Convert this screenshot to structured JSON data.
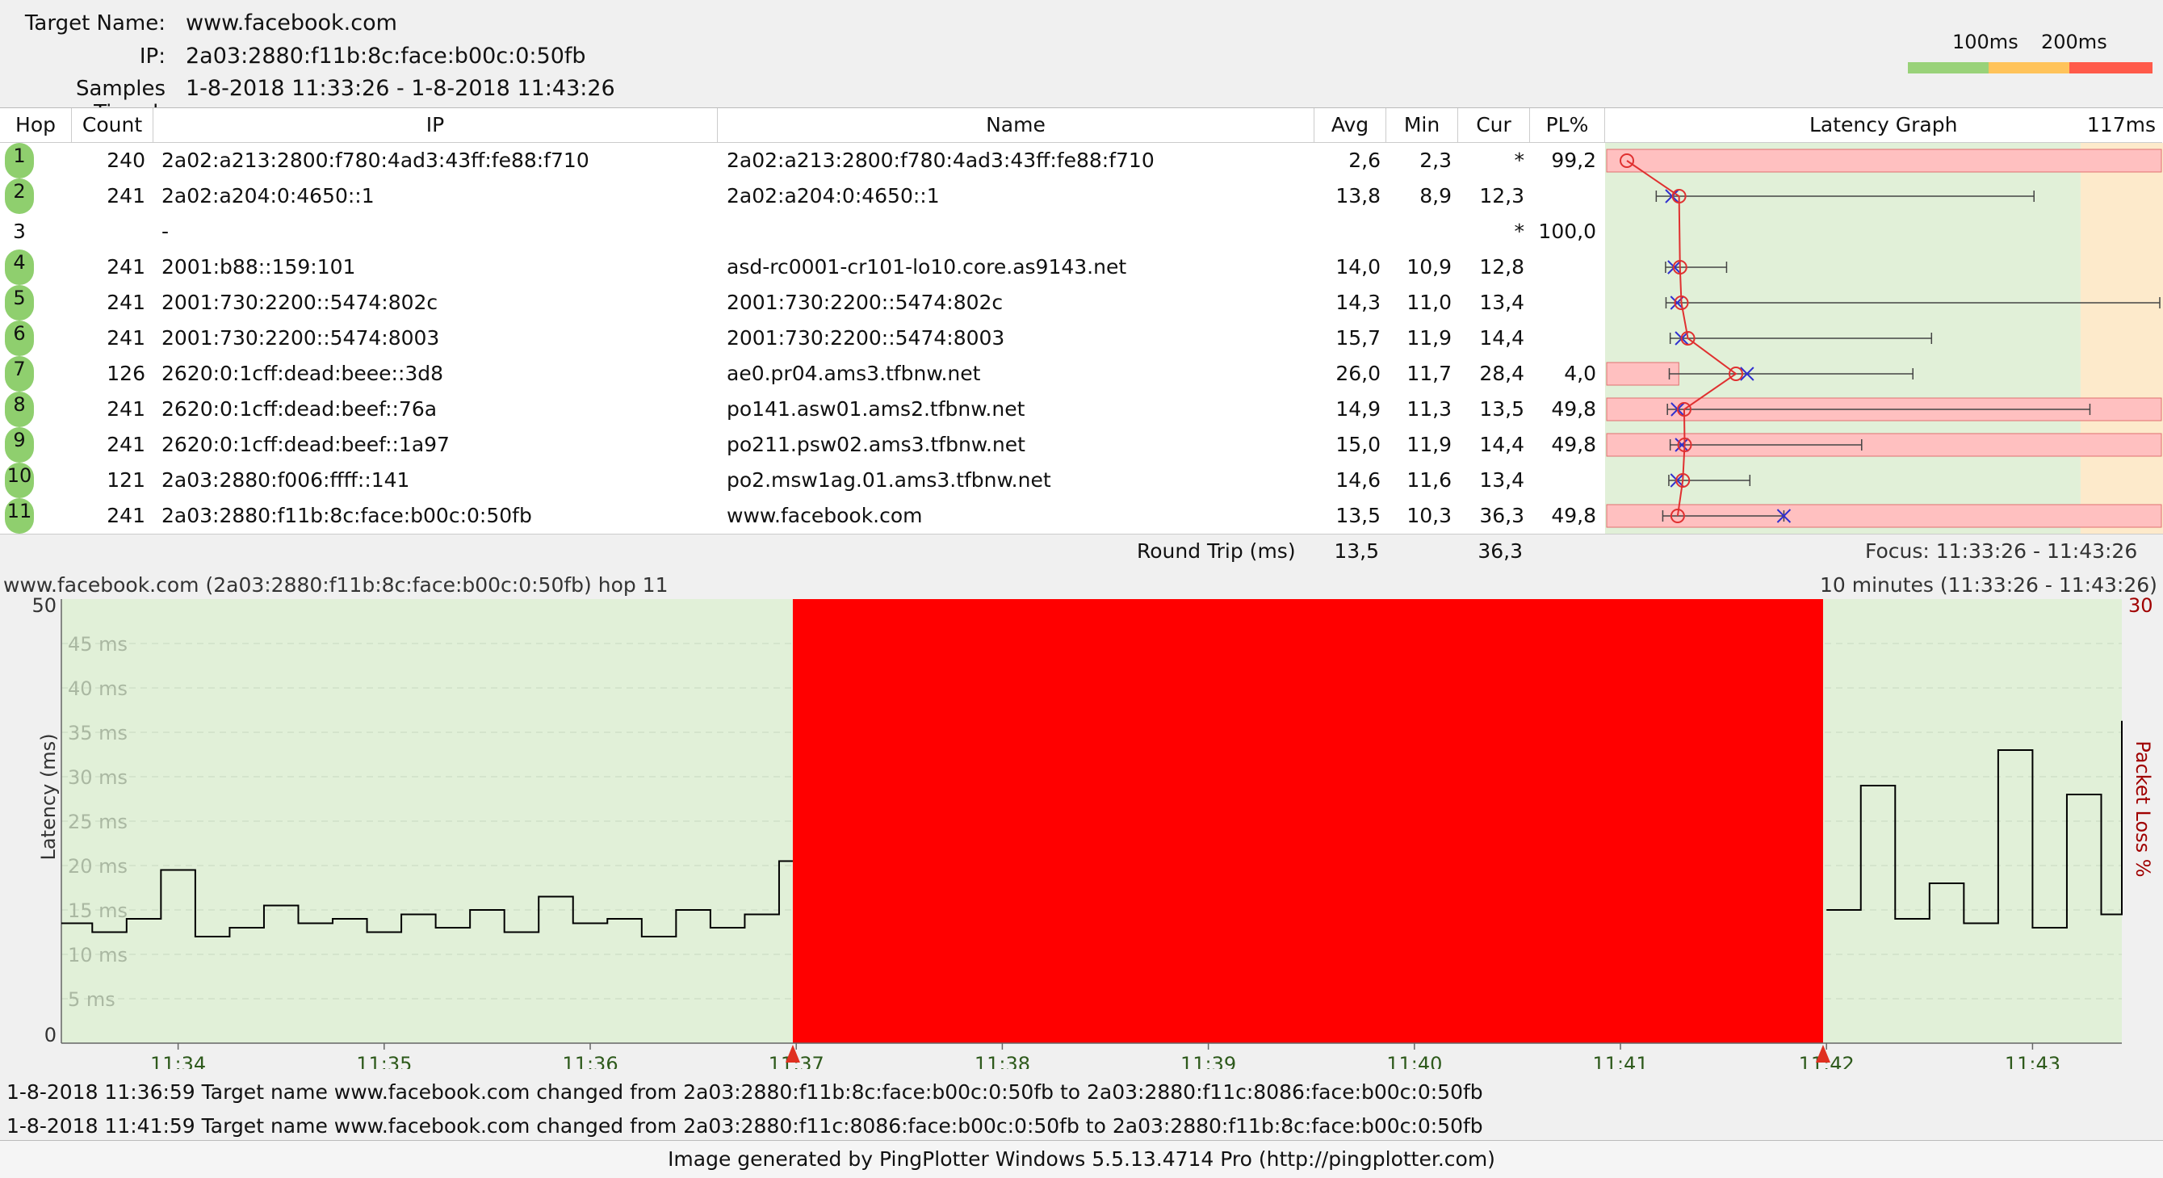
{
  "header": {
    "target_label": "Target Name:",
    "target_value": "www.facebook.com",
    "ip_label": "IP:",
    "ip_value": "2a03:2880:f11b:8c:face:b00c:0:50fb",
    "samples_label": "Samples Timed:",
    "samples_value": "1-8-2018 11:33:26 - 1-8-2018 11:43:26"
  },
  "legend": {
    "label_100": "100ms",
    "label_200": "200ms",
    "colors": {
      "good": "#99d279",
      "mid": "#ffc35a",
      "bad": "#ff5a4a"
    }
  },
  "table": {
    "columns": {
      "hop": "Hop",
      "count": "Count",
      "ip": "IP",
      "name": "Name",
      "avg": "Avg",
      "min": "Min",
      "cur": "Cur",
      "pl": "PL%",
      "graph": "Latency Graph",
      "graph_max": "117ms"
    },
    "rows": [
      {
        "hop": "1",
        "count": "240",
        "ip": "2a02:a213:2800:f780:4ad3:43ff:fe88:f710",
        "name": "2a02:a213:2800:f780:4ad3:43ff:fe88:f710",
        "avg": "2,6",
        "min": "2,3",
        "cur": "*",
        "pl": "99,2",
        "responding": true,
        "loss_fraction": 1.0,
        "max": 117,
        "cur_val": null
      },
      {
        "hop": "2",
        "count": "241",
        "ip": "2a02:a204:0:4650::1",
        "name": "2a02:a204:0:4650::1",
        "avg": "13,8",
        "min": "8,9",
        "cur": "12,3",
        "pl": "",
        "responding": true,
        "loss_fraction": 0,
        "max": 90,
        "cur_val": 12.3
      },
      {
        "hop": "3",
        "count": "",
        "ip": "-",
        "name": "",
        "avg": "",
        "min": "",
        "cur": "*",
        "pl": "100,0",
        "responding": false,
        "loss_fraction": 0,
        "max": null,
        "cur_val": null
      },
      {
        "hop": "4",
        "count": "241",
        "ip": "2001:b88::159:101",
        "name": "asd-rc0001-cr101-lo10.core.as9143.net",
        "avg": "14,0",
        "min": "10,9",
        "cur": "12,8",
        "pl": "",
        "responding": true,
        "loss_fraction": 0,
        "max": 24,
        "cur_val": 12.8
      },
      {
        "hop": "5",
        "count": "241",
        "ip": "2001:730:2200::5474:802c",
        "name": "2001:730:2200::5474:802c",
        "avg": "14,3",
        "min": "11,0",
        "cur": "13,4",
        "pl": "",
        "responding": true,
        "loss_fraction": 0,
        "max": 117,
        "cur_val": 13.4
      },
      {
        "hop": "6",
        "count": "241",
        "ip": "2001:730:2200::5474:8003",
        "name": "2001:730:2200::5474:8003",
        "avg": "15,7",
        "min": "11,9",
        "cur": "14,4",
        "pl": "",
        "responding": true,
        "loss_fraction": 0,
        "max": 68,
        "cur_val": 14.4
      },
      {
        "hop": "7",
        "count": "126",
        "ip": "2620:0:1cff:dead:beee::3d8",
        "name": "ae0.pr04.ams3.tfbnw.net",
        "avg": "26,0",
        "min": "11,7",
        "cur": "28,4",
        "pl": "4,0",
        "responding": true,
        "loss_fraction": 0.13,
        "max": 64,
        "cur_val": 28.4
      },
      {
        "hop": "8",
        "count": "241",
        "ip": "2620:0:1cff:dead:beef::76a",
        "name": "po141.asw01.ams2.tfbnw.net",
        "avg": "14,9",
        "min": "11,3",
        "cur": "13,5",
        "pl": "49,8",
        "responding": true,
        "loss_fraction": 1.0,
        "max": 102,
        "cur_val": 13.5
      },
      {
        "hop": "9",
        "count": "241",
        "ip": "2620:0:1cff:dead:beef::1a97",
        "name": "po211.psw02.ams3.tfbnw.net",
        "avg": "15,0",
        "min": "11,9",
        "cur": "14,4",
        "pl": "49,8",
        "responding": true,
        "loss_fraction": 1.0,
        "max": 53,
        "cur_val": 14.4
      },
      {
        "hop": "10",
        "count": "121",
        "ip": "2a03:2880:f006:ffff::141",
        "name": "po2.msw1ag.01.ams3.tfbnw.net",
        "avg": "14,6",
        "min": "11,6",
        "cur": "13,4",
        "pl": "",
        "responding": true,
        "loss_fraction": 0,
        "max": 29,
        "cur_val": 13.4
      },
      {
        "hop": "11",
        "count": "241",
        "ip": "2a03:2880:f11b:8c:face:b00c:0:50fb",
        "name": "www.facebook.com",
        "avg": "13,5",
        "min": "10,3",
        "cur": "36,3",
        "pl": "49,8",
        "responding": true,
        "loss_fraction": 1.0,
        "max": 36.3,
        "cur_val": 36.3
      }
    ],
    "summary": {
      "label": "Round Trip (ms)",
      "avg": "13,5",
      "cur": "36,3",
      "focus": "Focus: 11:33:26 - 11:43:26"
    }
  },
  "detail": {
    "title": "www.facebook.com (2a03:2880:f11b:8c:face:b00c:0:50fb) hop 11",
    "range": "10 minutes (11:33:26 - 11:43:26)",
    "y_left_label": "Latency (ms)",
    "y_right_label": "Packet Loss %",
    "y_top_value": "50",
    "y_bottom_value": "0",
    "loss_top_value": "30",
    "grid_labels": [
      "5 ms",
      "10 ms",
      "15 ms",
      "20 ms",
      "25 ms",
      "30 ms",
      "35 ms",
      "40 ms",
      "45 ms"
    ],
    "time_labels": [
      "11:34",
      "11:35",
      "11:36",
      "11:37",
      "11:38",
      "11:39",
      "11:40",
      "11:41",
      "11:42",
      "11:43"
    ],
    "chart_data": {
      "type": "line",
      "xlabel": "",
      "ylabel": "Latency (ms)",
      "ylim": [
        0,
        50
      ],
      "loss_window": [
        "11:36:59",
        "11:41:59"
      ],
      "series": [
        {
          "name": "",
          "x": [
            "11:33:26",
            "11:33:35",
            "11:33:45",
            "11:33:55",
            "11:34:05",
            "11:34:15",
            "11:34:25",
            "11:34:35",
            "11:34:45",
            "11:34:55",
            "11:35:05",
            "11:35:15",
            "11:35:25",
            "11:35:35",
            "11:35:45",
            "11:35:55",
            "11:36:05",
            "11:36:15",
            "11:36:25",
            "11:36:35",
            "11:36:45",
            "11:36:55",
            "11:42:00",
            "11:42:10",
            "11:42:20",
            "11:42:30",
            "11:42:40",
            "11:42:50",
            "11:43:00",
            "11:43:10",
            "11:43:20",
            "11:43:26"
          ],
          "y": [
            13.5,
            12.5,
            14.0,
            19.5,
            12.0,
            13.0,
            15.5,
            13.5,
            14.0,
            12.5,
            14.5,
            13.0,
            15.0,
            12.5,
            16.5,
            13.5,
            14.0,
            12.0,
            15.0,
            13.0,
            14.5,
            20.5,
            15.0,
            29.0,
            14.0,
            18.0,
            13.5,
            33.0,
            13.0,
            28.0,
            14.5,
            36.3
          ]
        }
      ]
    }
  },
  "events": [
    "1-8-2018 11:36:59 Target name www.facebook.com changed from 2a03:2880:f11b:8c:face:b00c:0:50fb to 2a03:2880:f11c:8086:face:b00c:0:50fb",
    "1-8-2018 11:41:59 Target name www.facebook.com changed from 2a03:2880:f11c:8086:face:b00c:0:50fb to 2a03:2880:f11b:8c:face:b00c:0:50fb"
  ],
  "footer": "Image generated by PingPlotter Windows 5.5.13.4714 Pro (http://pingplotter.com)"
}
